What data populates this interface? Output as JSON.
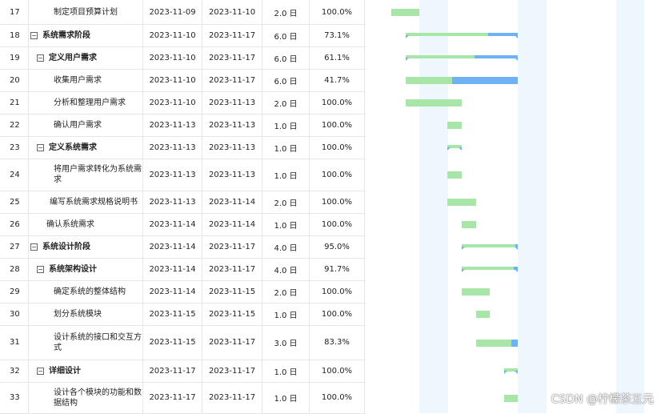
{
  "tasks": [
    {
      "id": "17",
      "name": "制定项目预算计划",
      "start": "2023-11-09",
      "end": "2023-11-10",
      "duration": "2.0 日",
      "percent": "100.0%",
      "level": 3,
      "summary": false,
      "progress": 1.0
    },
    {
      "id": "18",
      "name": "系统需求阶段",
      "start": "2023-11-10",
      "end": "2023-11-17",
      "duration": "6.0 日",
      "percent": "73.1%",
      "level": 1,
      "summary": true,
      "progress": 0.731
    },
    {
      "id": "19",
      "name": "定义用户需求",
      "start": "2023-11-10",
      "end": "2023-11-17",
      "duration": "6.0 日",
      "percent": "61.1%",
      "level": 2,
      "summary": true,
      "progress": 0.611
    },
    {
      "id": "20",
      "name": "收集用户需求",
      "start": "2023-11-10",
      "end": "2023-11-17",
      "duration": "6.0 日",
      "percent": "41.7%",
      "level": 3,
      "summary": false,
      "progress": 0.417
    },
    {
      "id": "21",
      "name": "分析和整理用户需求",
      "start": "2023-11-10",
      "end": "2023-11-13",
      "duration": "2.0 日",
      "percent": "100.0%",
      "level": 3,
      "summary": false,
      "progress": 1.0
    },
    {
      "id": "22",
      "name": "确认用户需求",
      "start": "2023-11-13",
      "end": "2023-11-13",
      "duration": "1.0 日",
      "percent": "100.0%",
      "level": 3,
      "summary": false,
      "progress": 1.0
    },
    {
      "id": "23",
      "name": "定义系统需求",
      "start": "2023-11-13",
      "end": "2023-11-13",
      "duration": "1.0 日",
      "percent": "100.0%",
      "level": 2,
      "summary": true,
      "progress": 1.0
    },
    {
      "id": "24",
      "name": "将用户需求转化为系统需求",
      "start": "2023-11-13",
      "end": "2023-11-13",
      "duration": "1.0 日",
      "percent": "100.0%",
      "level": 3,
      "summary": false,
      "progress": 1.0
    },
    {
      "id": "25",
      "name": "编写系统需求规格说明书",
      "start": "2023-11-13",
      "end": "2023-11-14",
      "duration": "2.0 日",
      "percent": "100.0%",
      "level": 2.6,
      "summary": false,
      "progress": 1.0
    },
    {
      "id": "26",
      "name": "确认系统需求",
      "start": "2023-11-14",
      "end": "2023-11-14",
      "duration": "1.0 日",
      "percent": "100.0%",
      "level": 2.2,
      "summary": false,
      "progress": 1.0
    },
    {
      "id": "27",
      "name": "系统设计阶段",
      "start": "2023-11-14",
      "end": "2023-11-17",
      "duration": "4.0 日",
      "percent": "95.0%",
      "level": 1,
      "summary": true,
      "progress": 0.95
    },
    {
      "id": "28",
      "name": "系统架构设计",
      "start": "2023-11-14",
      "end": "2023-11-17",
      "duration": "4.0 日",
      "percent": "91.7%",
      "level": 2,
      "summary": true,
      "progress": 0.917
    },
    {
      "id": "29",
      "name": "确定系统的整体结构",
      "start": "2023-11-14",
      "end": "2023-11-15",
      "duration": "2.0 日",
      "percent": "100.0%",
      "level": 3,
      "summary": false,
      "progress": 1.0
    },
    {
      "id": "30",
      "name": "划分系统模块",
      "start": "2023-11-15",
      "end": "2023-11-15",
      "duration": "1.0 日",
      "percent": "100.0%",
      "level": 3,
      "summary": false,
      "progress": 1.0
    },
    {
      "id": "31",
      "name": "设计系统的接口和交互方式",
      "start": "2023-11-15",
      "end": "2023-11-17",
      "duration": "3.0 日",
      "percent": "83.3%",
      "level": 3,
      "summary": false,
      "progress": 0.833
    },
    {
      "id": "32",
      "name": "详细设计",
      "start": "2023-11-17",
      "end": "2023-11-17",
      "duration": "1.0 日",
      "percent": "100.0%",
      "level": 2,
      "summary": true,
      "progress": 1.0
    },
    {
      "id": "33",
      "name": "设计各个模块的功能和数据结构",
      "start": "2023-11-17",
      "end": "2023-11-17",
      "duration": "1.0 日",
      "percent": "100.0%",
      "level": 3,
      "summary": false,
      "progress": 1.0
    }
  ],
  "colors": {
    "done": "#a8e6a8",
    "todo": "#6fb1f5",
    "weekend": "#eef6fe"
  },
  "watermark": "CSDN @柠檬茶五元"
}
